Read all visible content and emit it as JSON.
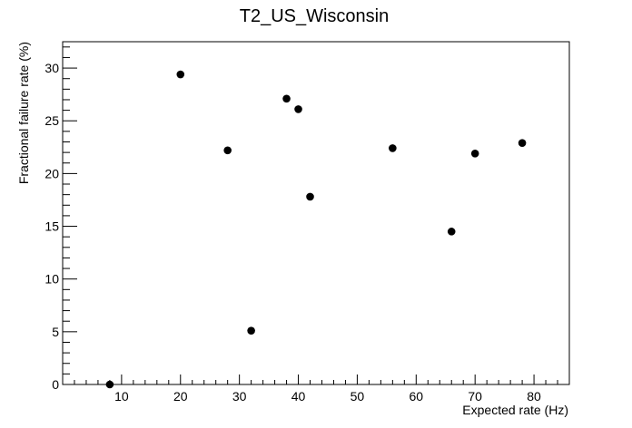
{
  "chart_data": {
    "type": "scatter",
    "title": "T2_US_Wisconsin",
    "xlabel": "Expected rate (Hz)",
    "ylabel": "Fractional failure rate (%)",
    "xlim": [
      0,
      86
    ],
    "ylim": [
      0,
      32.5
    ],
    "xticks": [
      10,
      20,
      30,
      40,
      50,
      60,
      70,
      80
    ],
    "yticks": [
      0,
      5,
      10,
      15,
      20,
      25,
      30
    ],
    "points": [
      {
        "x": 8,
        "y": 0
      },
      {
        "x": 20,
        "y": 29.4
      },
      {
        "x": 28,
        "y": 22.2
      },
      {
        "x": 32,
        "y": 5.1
      },
      {
        "x": 38,
        "y": 27.1
      },
      {
        "x": 40,
        "y": 26.1
      },
      {
        "x": 42,
        "y": 17.8
      },
      {
        "x": 56,
        "y": 22.4
      },
      {
        "x": 66,
        "y": 14.5
      },
      {
        "x": 70,
        "y": 21.9
      },
      {
        "x": 78,
        "y": 22.9
      }
    ],
    "grid": false,
    "marker_color": "#000000"
  }
}
